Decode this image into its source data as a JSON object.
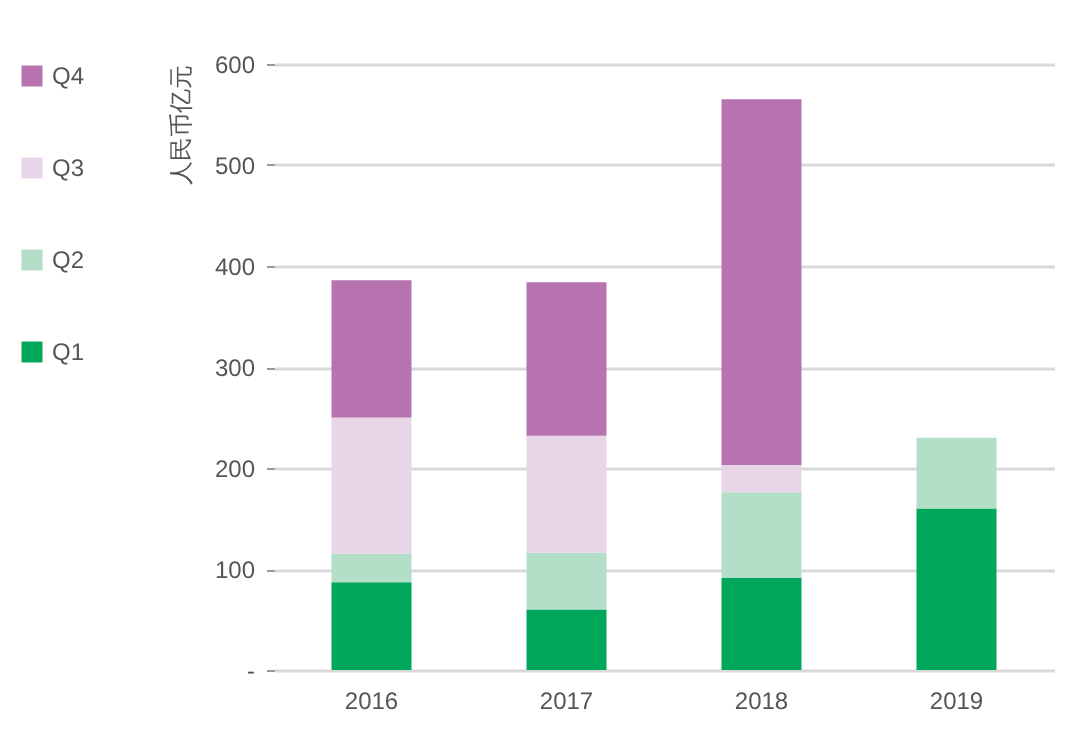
{
  "chart_data": {
    "type": "bar",
    "stacked": true,
    "ylabel": "人民币亿元",
    "categories": [
      "2016",
      "2017",
      "2018",
      "2019"
    ],
    "series": [
      {
        "name": "Q1",
        "color": "#00a65a",
        "values": [
          87,
          60,
          91,
          160
        ]
      },
      {
        "name": "Q2",
        "color": "#b3dec8",
        "values": [
          28,
          56,
          85,
          70
        ]
      },
      {
        "name": "Q3",
        "color": "#e8d5e8",
        "values": [
          135,
          116,
          27,
          null
        ]
      },
      {
        "name": "Q4",
        "color": "#b673b0",
        "values": [
          136,
          152,
          362,
          null
        ]
      }
    ],
    "ylim": [
      0,
      600
    ],
    "yticks": [
      {
        "value": 0,
        "label": "-"
      },
      100,
      200,
      300,
      400,
      500,
      600
    ],
    "grid": "y",
    "legend": "left"
  }
}
